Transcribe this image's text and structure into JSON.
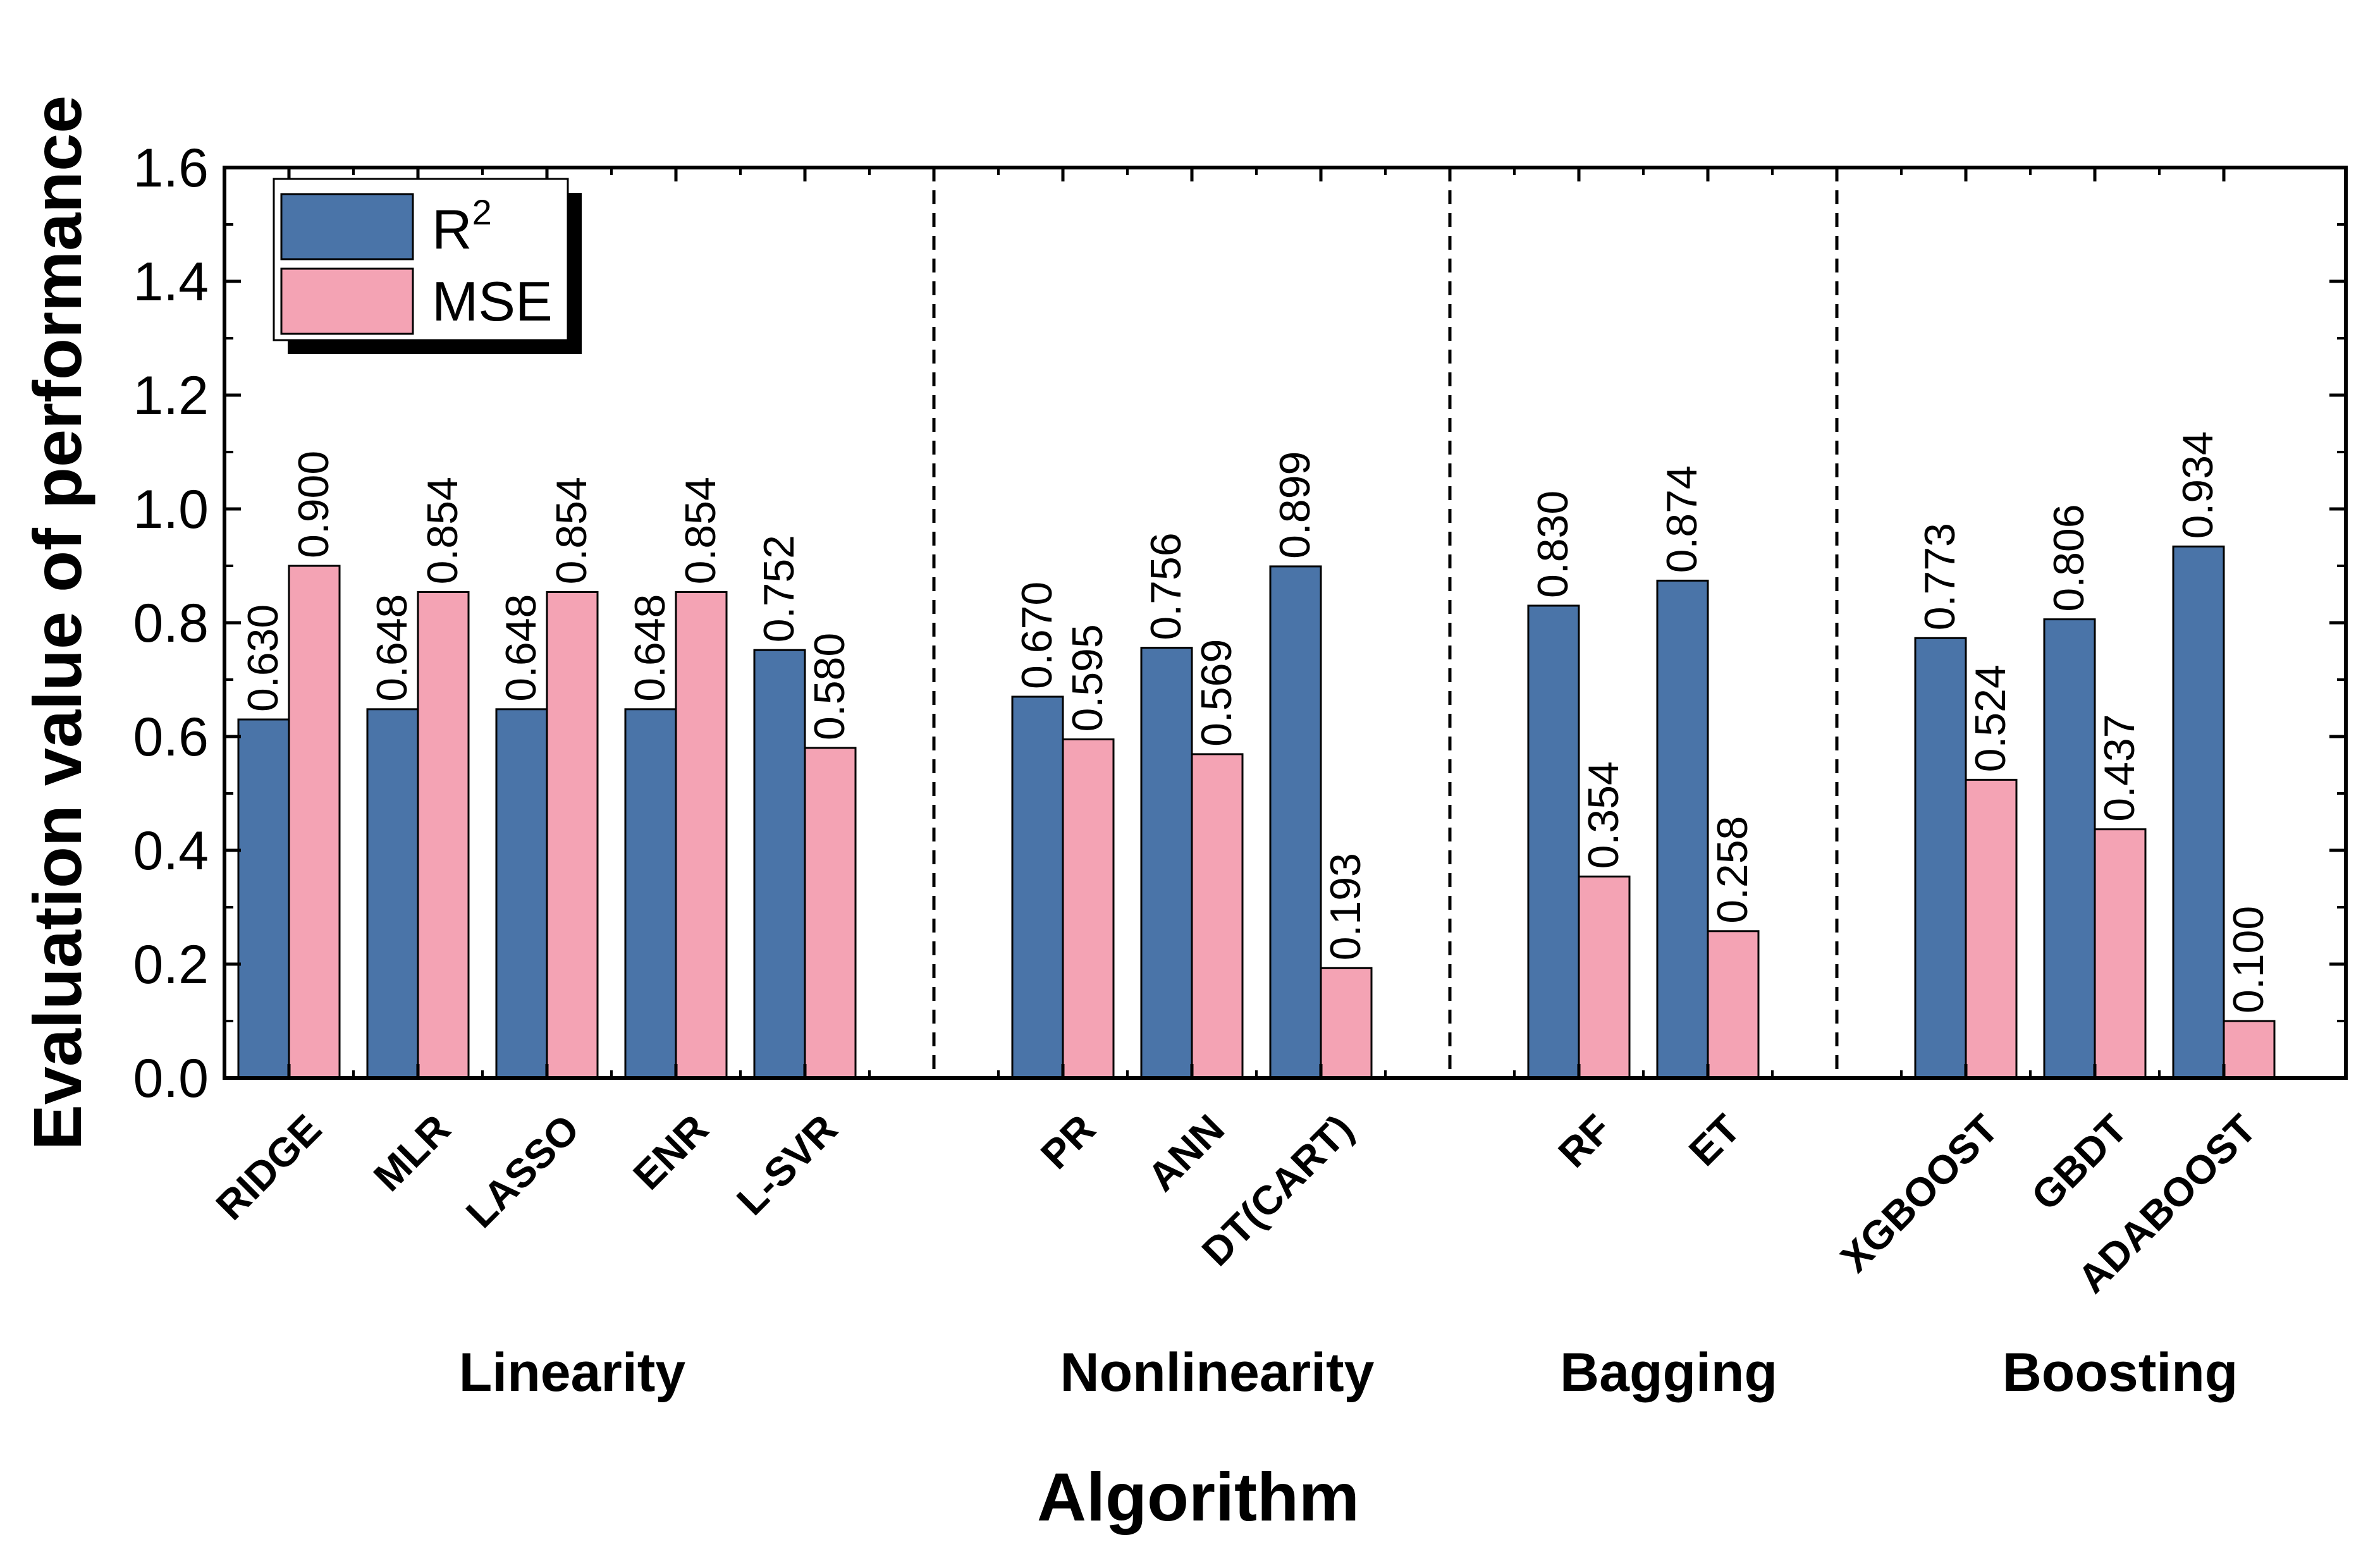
{
  "chart_data": {
    "type": "bar",
    "title": "",
    "xlabel": "Algorithm",
    "ylabel": "Evaluation value of performance",
    "ylim": [
      0,
      1.6
    ],
    "yticks": [
      "0.0",
      "0.2",
      "0.4",
      "0.6",
      "0.8",
      "1.0",
      "1.2",
      "1.4",
      "1.6"
    ],
    "legend_position": "top-left",
    "categories": [
      "RIDGE",
      "MLR",
      "LASSO",
      "ENR",
      "L-SVR",
      "PR",
      "ANN",
      "DT(CART)",
      "RF",
      "ET",
      "XGBOOST",
      "GBDT",
      "ADABOOST"
    ],
    "groups": [
      {
        "name": "Linearity",
        "categories": [
          "RIDGE",
          "MLR",
          "LASSO",
          "ENR",
          "L-SVR"
        ]
      },
      {
        "name": "Nonlinearity",
        "categories": [
          "PR",
          "ANN",
          "DT(CART)"
        ]
      },
      {
        "name": "Bagging",
        "categories": [
          "RF",
          "ET"
        ]
      },
      {
        "name": "Boosting",
        "categories": [
          "XGBOOST",
          "GBDT",
          "ADABOOST"
        ]
      }
    ],
    "series": [
      {
        "name": "R2",
        "legend_base": "R",
        "legend_sup": "2",
        "color": "#4a74a8",
        "values": [
          0.63,
          0.648,
          0.648,
          0.648,
          0.752,
          0.67,
          0.756,
          0.899,
          0.83,
          0.874,
          0.773,
          0.806,
          0.934
        ],
        "labels": [
          "0.630",
          "0.648",
          "0.648",
          "0.648",
          "0.752",
          "0.670",
          "0.756",
          "0.899",
          "0.830",
          "0.874",
          "0.773",
          "0.806",
          "0.934"
        ]
      },
      {
        "name": "MSE",
        "legend_base": "MSE",
        "legend_sup": "",
        "color": "#f4a3b4",
        "values": [
          0.9,
          0.854,
          0.854,
          0.854,
          0.58,
          0.595,
          0.569,
          0.193,
          0.354,
          0.258,
          0.524,
          0.437,
          0.1
        ],
        "labels": [
          "0.900",
          "0.854",
          "0.854",
          "0.854",
          "0.580",
          "0.595",
          "0.569",
          "0.193",
          "0.354",
          "0.258",
          "0.524",
          "0.437",
          "0.100"
        ]
      }
    ]
  }
}
